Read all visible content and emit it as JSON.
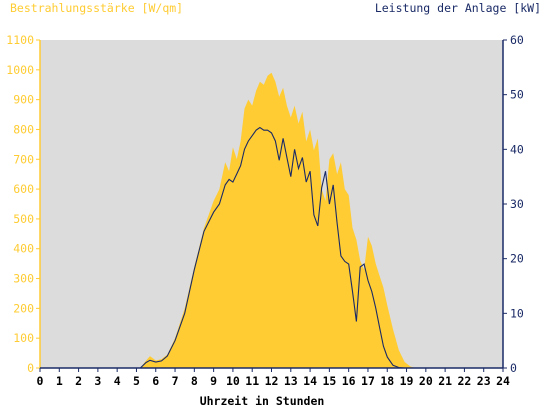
{
  "chart_data": {
    "type": "area",
    "left_axis_label": "Bestrahlungsstärke [W/qm]",
    "right_axis_label": "Leistung der Anlage [kW]",
    "xlabel": "Uhrzeit in Stunden",
    "xlim": [
      0,
      24
    ],
    "ylim_left": [
      0,
      1100
    ],
    "ylim_right": [
      0,
      60
    ],
    "x_ticks": [
      "0",
      "1",
      "2",
      "3",
      "4",
      "5",
      "6",
      "7",
      "8",
      "9",
      "10",
      "11",
      "12",
      "13",
      "14",
      "15",
      "16",
      "17",
      "18",
      "19",
      "20",
      "21",
      "22",
      "23",
      "24"
    ],
    "y_ticks_left": [
      "0",
      "100",
      "200",
      "300",
      "400",
      "500",
      "600",
      "700",
      "800",
      "900",
      "1000",
      "1100"
    ],
    "y_ticks_right": [
      "0",
      "10",
      "20",
      "30",
      "40",
      "50",
      "60"
    ],
    "grid": false,
    "colors": {
      "irradiance_fill": "#ffcc33",
      "power_line": "#1a2a66",
      "plot_bg": "#dcdcdc",
      "left_axis": "#ffcc33",
      "right_axis": "#1a2a66"
    },
    "series": [
      {
        "axis": "left",
        "style": "area",
        "x": [
          0,
          5.2,
          5.5,
          5.7,
          6.0,
          6.3,
          6.6,
          7.0,
          7.5,
          8.0,
          8.5,
          9.0,
          9.3,
          9.6,
          9.8,
          10.0,
          10.2,
          10.4,
          10.6,
          10.8,
          11.0,
          11.2,
          11.4,
          11.6,
          11.8,
          12.0,
          12.2,
          12.4,
          12.6,
          12.8,
          13.0,
          13.2,
          13.4,
          13.6,
          13.8,
          14.0,
          14.2,
          14.4,
          14.6,
          14.8,
          15.0,
          15.2,
          15.4,
          15.6,
          15.8,
          16.0,
          16.2,
          16.4,
          16.6,
          16.8,
          17.0,
          17.2,
          17.4,
          17.6,
          17.8,
          18.0,
          18.3,
          18.6,
          18.9,
          19.2,
          19.5,
          20.0,
          24
        ],
        "values": [
          0,
          0,
          25,
          40,
          25,
          30,
          45,
          100,
          200,
          340,
          470,
          560,
          600,
          690,
          660,
          740,
          700,
          760,
          870,
          900,
          880,
          930,
          960,
          950,
          980,
          990,
          960,
          910,
          940,
          880,
          840,
          880,
          820,
          860,
          760,
          800,
          730,
          770,
          600,
          560,
          700,
          720,
          650,
          690,
          600,
          580,
          470,
          430,
          360,
          330,
          440,
          410,
          350,
          310,
          270,
          210,
          130,
          60,
          20,
          5,
          0,
          0,
          0
        ]
      },
      {
        "axis": "right",
        "style": "line",
        "x": [
          0,
          5.2,
          5.5,
          5.7,
          6.0,
          6.3,
          6.6,
          7.0,
          7.5,
          8.0,
          8.5,
          9.0,
          9.3,
          9.6,
          9.8,
          10.0,
          10.2,
          10.4,
          10.6,
          10.8,
          11.0,
          11.2,
          11.4,
          11.6,
          11.8,
          12.0,
          12.2,
          12.4,
          12.6,
          12.8,
          13.0,
          13.2,
          13.4,
          13.6,
          13.8,
          14.0,
          14.2,
          14.4,
          14.6,
          14.8,
          15.0,
          15.2,
          15.4,
          15.6,
          15.8,
          16.0,
          16.2,
          16.4,
          16.6,
          16.8,
          17.0,
          17.2,
          17.4,
          17.6,
          17.8,
          18.0,
          18.3,
          18.6,
          18.9,
          19.2,
          19.5,
          20.0,
          24
        ],
        "values": [
          0,
          0,
          1.0,
          1.4,
          1.1,
          1.3,
          2.2,
          5.0,
          10.0,
          18.0,
          25.0,
          28.5,
          30.0,
          33.5,
          34.5,
          34.0,
          35.5,
          37.0,
          40.0,
          41.5,
          42.5,
          43.5,
          44.0,
          43.5,
          43.5,
          43.0,
          41.5,
          38.0,
          42.0,
          38.5,
          35.0,
          40.0,
          36.5,
          38.5,
          34.0,
          36.0,
          28.0,
          26.0,
          33.0,
          36.0,
          30.0,
          33.5,
          26.5,
          20.5,
          19.5,
          19.0,
          14.0,
          8.5,
          18.5,
          19.0,
          16.0,
          14.0,
          11.0,
          7.5,
          4.0,
          2.0,
          0.5,
          0.1,
          0,
          0,
          0,
          0,
          0
        ]
      }
    ]
  }
}
